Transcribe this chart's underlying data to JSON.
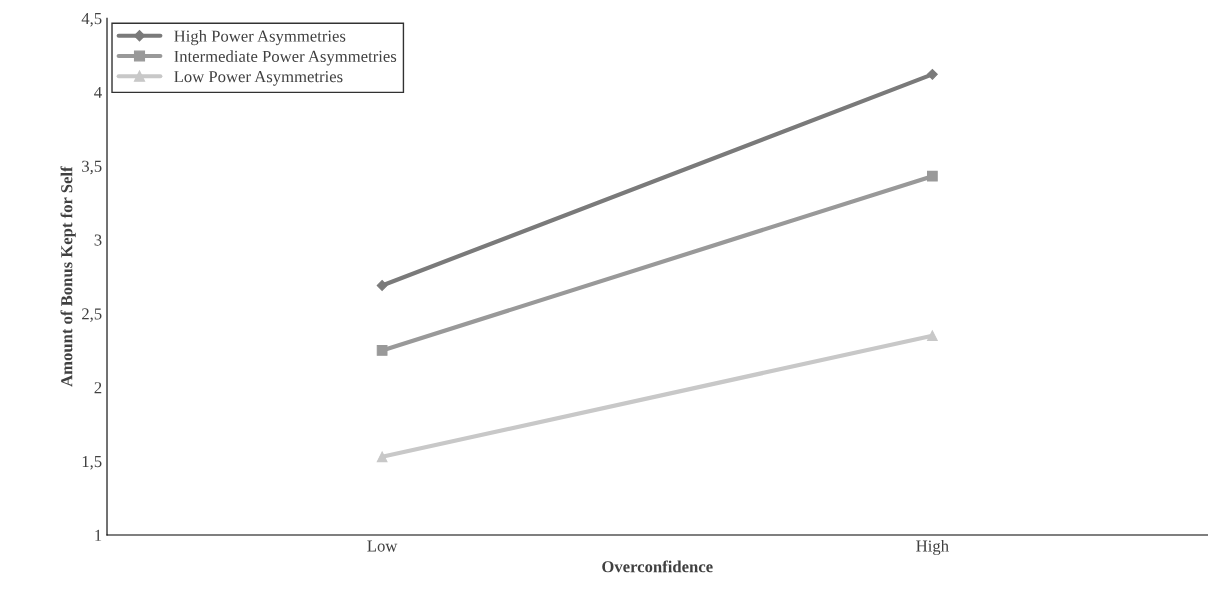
{
  "chart_data": {
    "type": "line",
    "xlabel": "Overconfidence",
    "ylabel": "Amount of Bonus Kept for Self",
    "categories": [
      "Low",
      "High"
    ],
    "series": [
      {
        "name": "High Power Asymmetries",
        "color": "#7a7a7a",
        "values": [
          2.69,
          4.12
        ],
        "marker": "diamond"
      },
      {
        "name": "Intermediate Power Asymmetries",
        "color": "#999999",
        "values": [
          2.25,
          3.43
        ],
        "marker": "square"
      },
      {
        "name": "Low Power Asymmetries",
        "color": "#c8c8c8",
        "values": [
          1.53,
          2.35
        ],
        "marker": "triangle"
      }
    ],
    "ylim": [
      1,
      4.5
    ],
    "yticks": [
      1,
      {
        "value": 1.5,
        "label": "1,5"
      },
      2,
      {
        "value": 2.5,
        "label": "2,5"
      },
      3,
      {
        "value": 3.5,
        "label": "3,5"
      },
      4,
      {
        "value": 4.5,
        "label": "4,5"
      }
    ],
    "grid": false,
    "legend": "top left",
    "line_style": "solid"
  }
}
